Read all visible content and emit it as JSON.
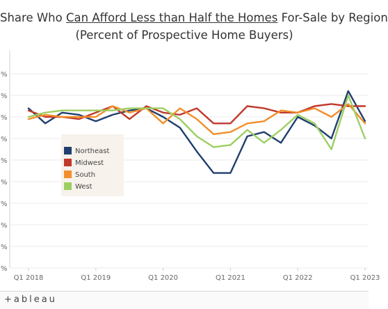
{
  "chart_data": {
    "type": "line",
    "title_prefix": "Share Who ",
    "title_underlined": "Can Afford Less than Half the Homes",
    "title_suffix": " For-Sale by Region",
    "subtitle": "(Percent of Prospective Home Buyers)",
    "x": [
      "Q1 2018",
      "Q2 2018",
      "Q3 2018",
      "Q4 2018",
      "Q1 2019",
      "Q2 2019",
      "Q3 2019",
      "Q4 2019",
      "Q1 2020",
      "Q2 2020",
      "Q3 2020",
      "Q4 2020",
      "Q1 2021",
      "Q2 2021",
      "Q3 2021",
      "Q4 2021",
      "Q1 2022",
      "Q2 2022",
      "Q3 2022",
      "Q4 2022",
      "Q1 2023"
    ],
    "x_tick_labels": [
      "Q1 2018",
      "Q1 2019",
      "Q1 2020",
      "Q1 2021",
      "Q1 2022",
      "Q1 2023"
    ],
    "y_tick_labels": [
      "%",
      "%",
      "%",
      "%",
      "%",
      "%",
      "%",
      "%",
      "%",
      "%"
    ],
    "ylim": [
      0,
      100
    ],
    "grid": true,
    "legend_placement": "left-center",
    "series": [
      {
        "name": "Northeast",
        "color": "#1f3f6f",
        "values": [
          74,
          67,
          72,
          71,
          68,
          71,
          73,
          74,
          70,
          65,
          54,
          44,
          44,
          61,
          63,
          58,
          70,
          66,
          60,
          82,
          68
        ]
      },
      {
        "name": "Midwest",
        "color": "#c0392b",
        "values": [
          73,
          70,
          70,
          69,
          72,
          75,
          69,
          75,
          72,
          71,
          74,
          67,
          67,
          75,
          74,
          72,
          72,
          75,
          76,
          75,
          75
        ]
      },
      {
        "name": "South",
        "color": "#f28e2b",
        "values": [
          69,
          71,
          70,
          70,
          70,
          75,
          72,
          74,
          67,
          74,
          69,
          62,
          63,
          67,
          68,
          73,
          72,
          74,
          70,
          76,
          67
        ]
      },
      {
        "name": "West",
        "color": "#9ccf62",
        "values": [
          70,
          72,
          73,
          73,
          73,
          73,
          74,
          74,
          74,
          69,
          61,
          56,
          57,
          64,
          58,
          64,
          71,
          67,
          55,
          80,
          60
        ]
      }
    ]
  },
  "footer": {
    "brand": "+ableau"
  }
}
